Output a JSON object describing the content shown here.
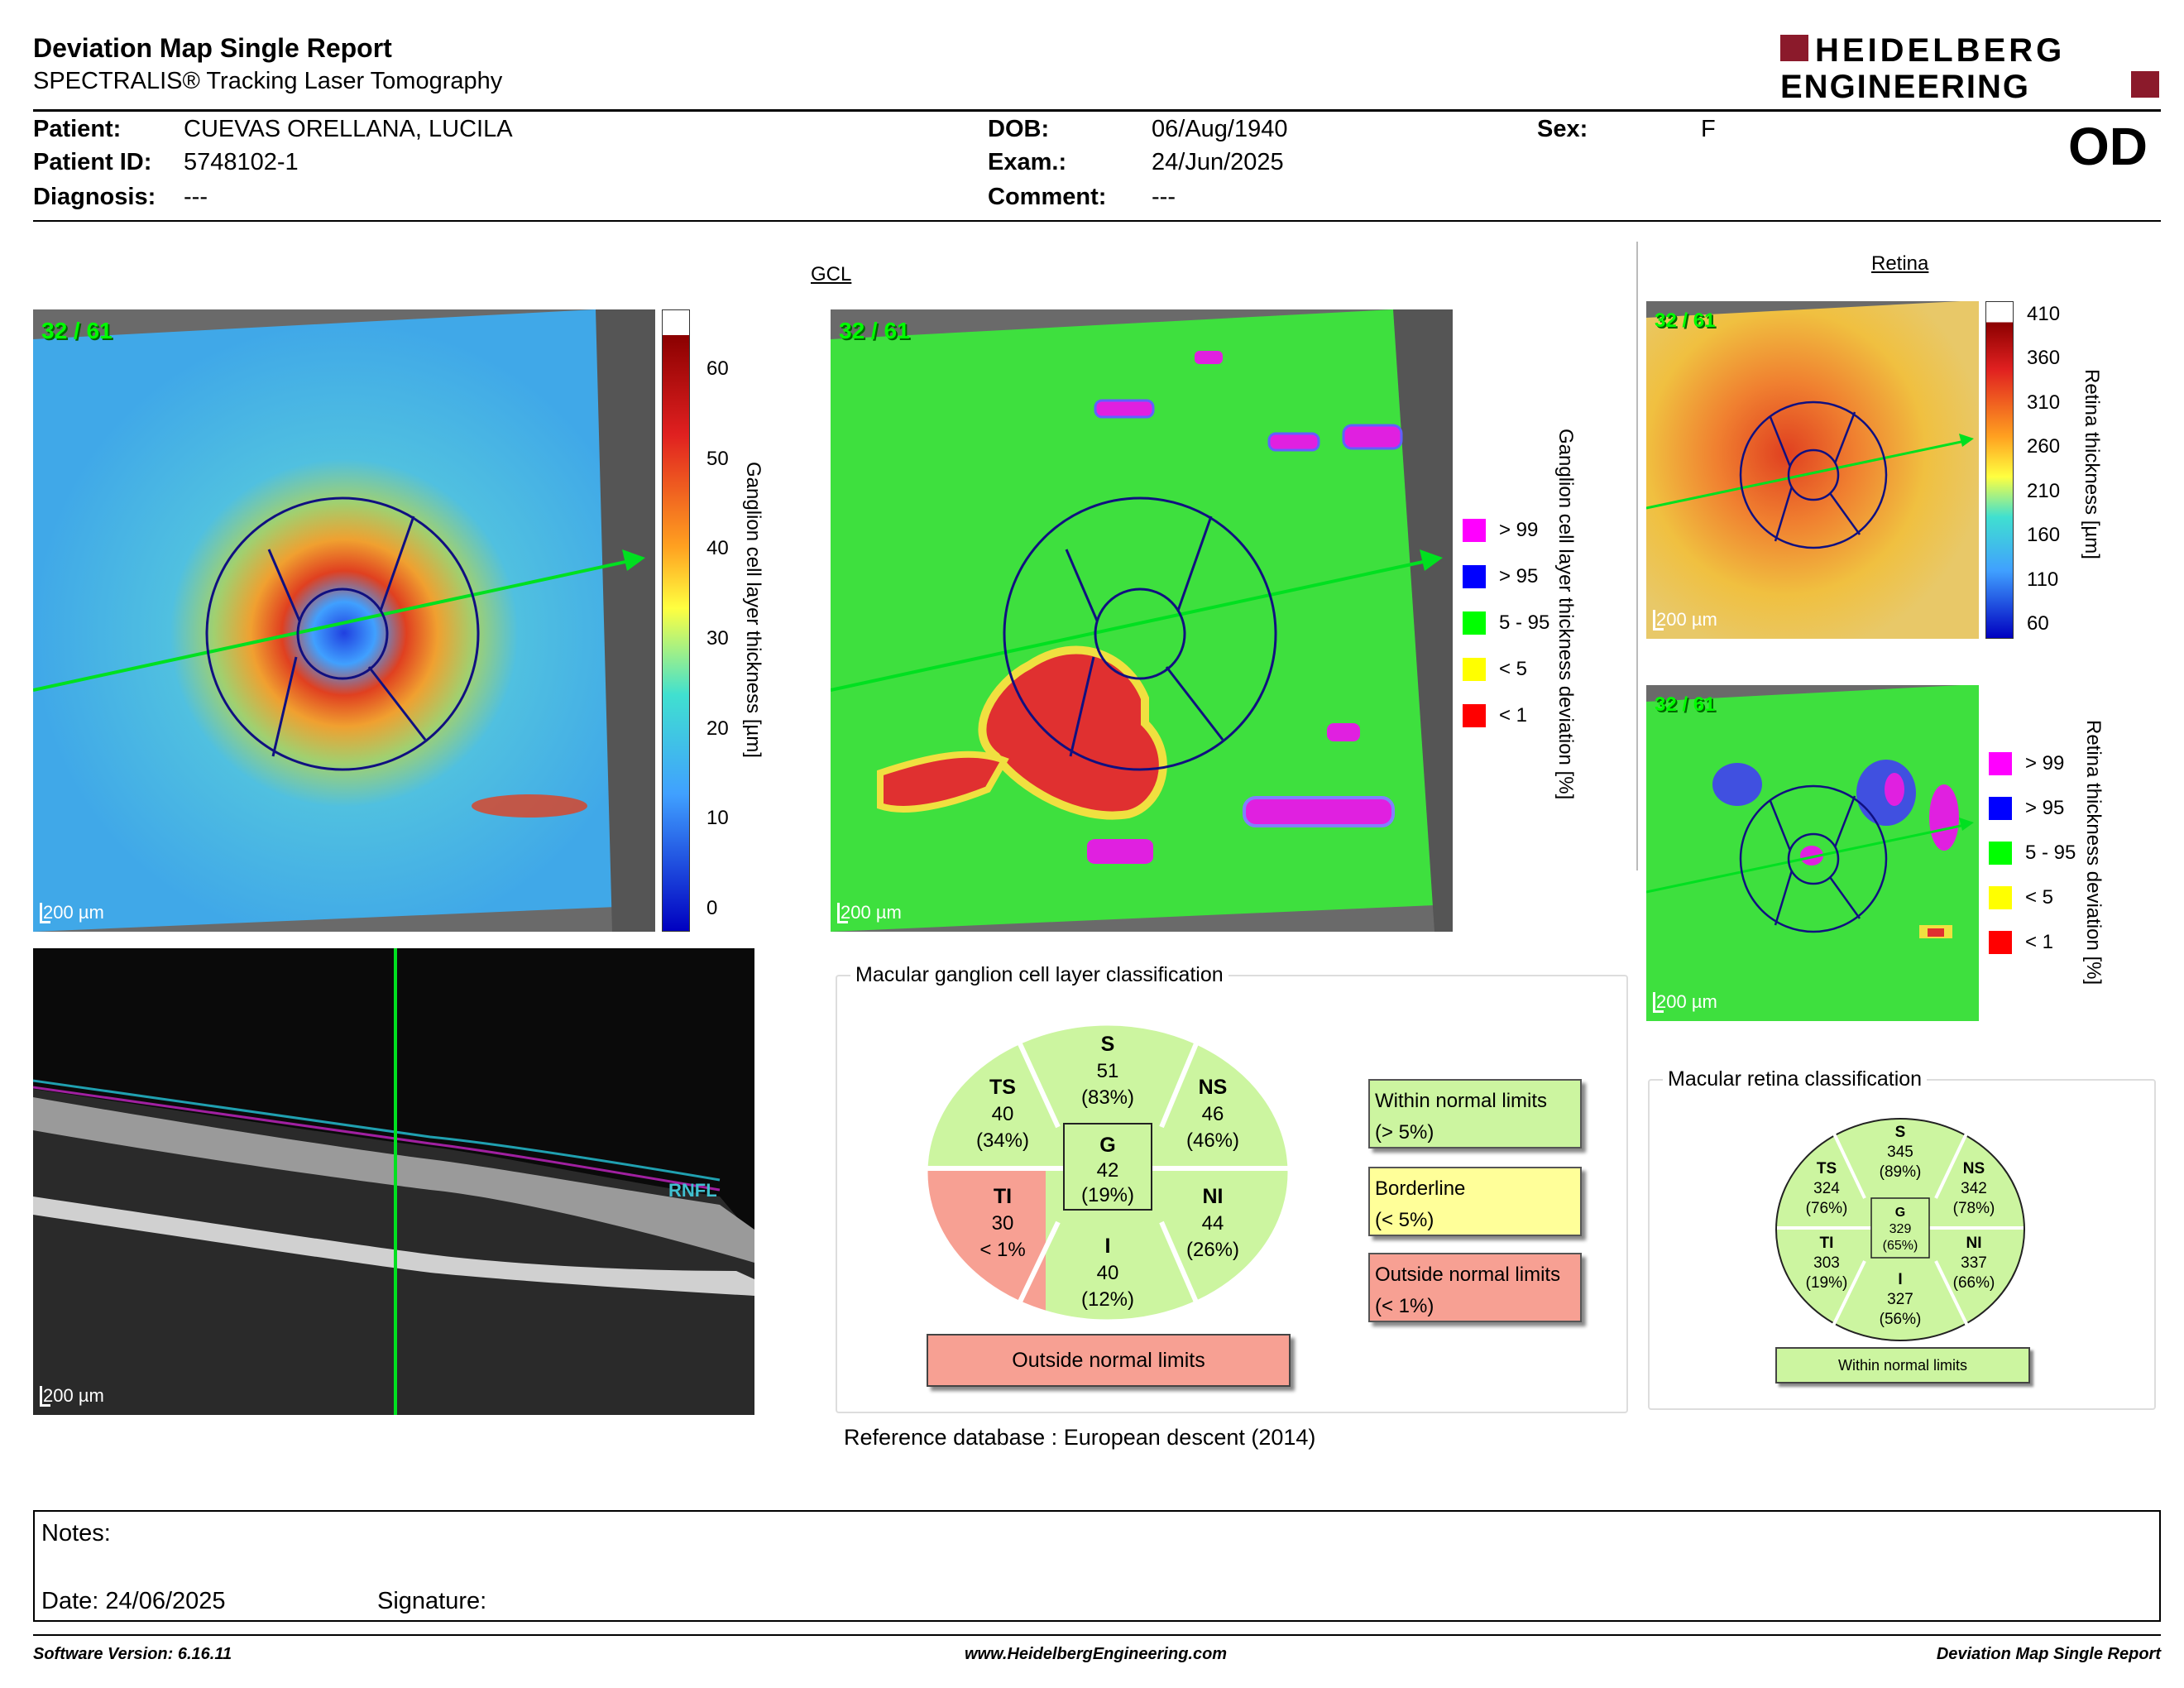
{
  "header": {
    "title": "Deviation Map Single Report",
    "subtitle": "SPECTRALIS® Tracking Laser Tomography",
    "logo_line1": "HEIDELBERG",
    "logo_line2": "ENGINEERING",
    "eye": "OD"
  },
  "patient": {
    "patient_label": "Patient:",
    "patient_value": "CUEVAS ORELLANA, LUCILA",
    "id_label": "Patient ID:",
    "id_value": "5748102-1",
    "diagnosis_label": "Diagnosis:",
    "diagnosis_value": "---",
    "dob_label": "DOB:",
    "dob_value": "06/Aug/1940",
    "exam_label": "Exam.:",
    "exam_value": "24/Jun/2025",
    "comment_label": "Comment:",
    "comment_value": "---",
    "sex_label": "Sex:",
    "sex_value": "F"
  },
  "gcl": {
    "section_title": "GCL",
    "thickness_map": {
      "frame": "32 / 61",
      "scale": "200 µm",
      "colorbar_ticks": [
        "60",
        "50",
        "40",
        "30",
        "20",
        "10",
        "0"
      ],
      "axis_label": "Ganglion cell layer thickness [µm]"
    },
    "deviation_map": {
      "frame": "32 / 61",
      "scale": "200 µm",
      "axis_label": "Ganglion cell layer thickness deviation [%]"
    },
    "legend": [
      {
        "label": "> 99",
        "color": "#ff00ff"
      },
      {
        "label": "> 95",
        "color": "#0000ff"
      },
      {
        "label": "5 - 95",
        "color": "#00ff00"
      },
      {
        "label": "< 5",
        "color": "#ffff00"
      },
      {
        "label": "< 1",
        "color": "#ff0000"
      }
    ],
    "bscan": {
      "scale": "200 µm",
      "layer_tag": "RNFL"
    }
  },
  "retina": {
    "section_title": "Retina",
    "thickness_map": {
      "frame": "32 / 61",
      "scale": "200 µm",
      "colorbar_ticks": [
        "410",
        "360",
        "310",
        "260",
        "210",
        "160",
        "110",
        "60"
      ],
      "axis_label": "Retina thickness [µm]"
    },
    "deviation_map": {
      "frame": "32 / 61",
      "scale": "200 µm",
      "axis_label": "Retina thickness deviation [%]"
    },
    "legend": [
      {
        "label": "> 99",
        "color": "#ff00ff"
      },
      {
        "label": "> 95",
        "color": "#0000ff"
      },
      {
        "label": "5 - 95",
        "color": "#00ff00"
      },
      {
        "label": "< 5",
        "color": "#ffff00"
      },
      {
        "label": "< 1",
        "color": "#ff0000"
      }
    ]
  },
  "gcl_classification": {
    "title": "Macular ganglion cell layer classification",
    "sectors": {
      "S": {
        "label": "S",
        "value": "51",
        "pct": "(83%)",
        "color": "#ccf5a0"
      },
      "TS": {
        "label": "TS",
        "value": "40",
        "pct": "(34%)",
        "color": "#ccf5a0"
      },
      "NS": {
        "label": "NS",
        "value": "46",
        "pct": "(46%)",
        "color": "#ccf5a0"
      },
      "TI": {
        "label": "TI",
        "value": "30",
        "pct": "< 1%",
        "color": "#f7a093"
      },
      "NI": {
        "label": "NI",
        "value": "44",
        "pct": "(26%)",
        "color": "#ccf5a0"
      },
      "I": {
        "label": "I",
        "value": "40",
        "pct": "(12%)",
        "color": "#ccf5a0"
      },
      "G": {
        "label": "G",
        "value": "42",
        "pct": "(19%)",
        "color": "#ccf5a0"
      }
    },
    "result": "Outside normal limits",
    "result_color": "#f7a093"
  },
  "classification_key": [
    {
      "line1": "Within normal limits",
      "line2": "(> 5%)",
      "color": "#ccf5a0"
    },
    {
      "line1": "Borderline",
      "line2": "(< 5%)",
      "color": "#ffff99"
    },
    {
      "line1": "Outside normal limits",
      "line2": "(< 1%)",
      "color": "#f7a093"
    }
  ],
  "retina_classification": {
    "title": "Macular retina classification",
    "sectors": {
      "S": {
        "label": "S",
        "value": "345",
        "pct": "(89%)"
      },
      "TS": {
        "label": "TS",
        "value": "324",
        "pct": "(76%)"
      },
      "NS": {
        "label": "NS",
        "value": "342",
        "pct": "(78%)"
      },
      "TI": {
        "label": "TI",
        "value": "303",
        "pct": "(19%)"
      },
      "NI": {
        "label": "NI",
        "value": "337",
        "pct": "(66%)"
      },
      "I": {
        "label": "I",
        "value": "327",
        "pct": "(56%)"
      },
      "G": {
        "label": "G",
        "value": "329",
        "pct": "(65%)"
      }
    },
    "result": "Within normal limits",
    "color": "#ccf5a0"
  },
  "reference": {
    "label": "Reference database",
    "value": "European descent (2014)"
  },
  "notes": {
    "notes_label": "Notes:",
    "date_label": "Date:",
    "date_value": "24/06/2025",
    "signature_label": "Signature:"
  },
  "footer": {
    "software": "Software Version: 6.16.11",
    "website": "www.HeidelbergEngineering.com",
    "report": "Deviation Map Single Report"
  }
}
